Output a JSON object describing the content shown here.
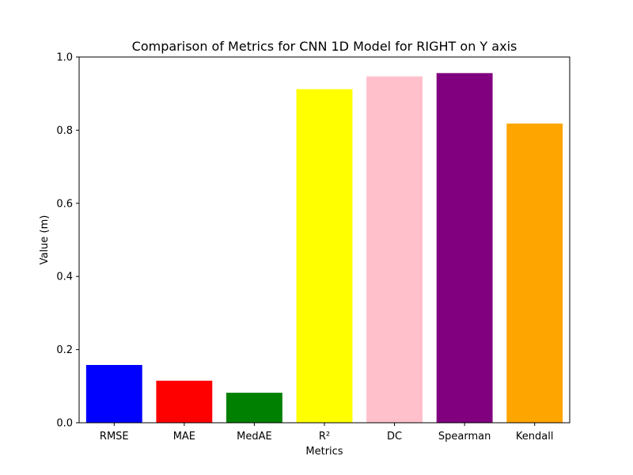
{
  "chart_data": {
    "type": "bar",
    "title": "Comparison of Metrics for CNN 1D Model for RIGHT on Y axis",
    "xlabel": "Metrics",
    "ylabel": "Value (m)",
    "categories": [
      "RMSE",
      "MAE",
      "MedAE",
      "R²",
      "DC",
      "Spearman",
      "Kendall"
    ],
    "values": [
      0.158,
      0.115,
      0.082,
      0.912,
      0.947,
      0.956,
      0.818
    ],
    "colors": [
      "#0000ff",
      "#ff0000",
      "#008000",
      "#ffff00",
      "#ffc0cb",
      "#800080",
      "#ffa500"
    ],
    "ylim": [
      0,
      1.0
    ],
    "yticks": [
      "0.0",
      "0.2",
      "0.4",
      "0.6",
      "0.8",
      "1.0"
    ],
    "grid": false,
    "legend": "none"
  }
}
